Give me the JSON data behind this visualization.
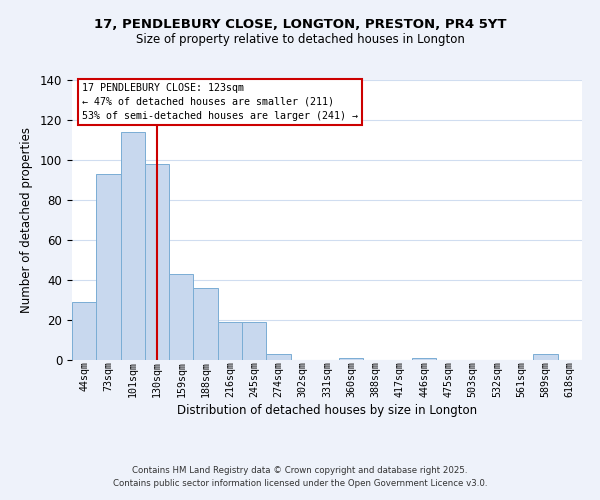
{
  "title": "17, PENDLEBURY CLOSE, LONGTON, PRESTON, PR4 5YT",
  "subtitle": "Size of property relative to detached houses in Longton",
  "xlabel": "Distribution of detached houses by size in Longton",
  "ylabel": "Number of detached properties",
  "bar_labels": [
    "44sqm",
    "73sqm",
    "101sqm",
    "130sqm",
    "159sqm",
    "188sqm",
    "216sqm",
    "245sqm",
    "274sqm",
    "302sqm",
    "331sqm",
    "360sqm",
    "388sqm",
    "417sqm",
    "446sqm",
    "475sqm",
    "503sqm",
    "532sqm",
    "561sqm",
    "589sqm",
    "618sqm"
  ],
  "bar_values": [
    29,
    93,
    114,
    98,
    43,
    36,
    19,
    19,
    3,
    0,
    0,
    1,
    0,
    0,
    1,
    0,
    0,
    0,
    0,
    3,
    0
  ],
  "bar_color": "#c8d8ee",
  "bar_edge_color": "#7aadd4",
  "vline_x": 3,
  "vline_color": "#cc0000",
  "ylim": [
    0,
    140
  ],
  "yticks": [
    0,
    20,
    40,
    60,
    80,
    100,
    120,
    140
  ],
  "annotation_line1": "17 PENDLEBURY CLOSE: 123sqm",
  "annotation_line2": "← 47% of detached houses are smaller (211)",
  "annotation_line3": "53% of semi-detached houses are larger (241) →",
  "footer_line1": "Contains HM Land Registry data © Crown copyright and database right 2025.",
  "footer_line2": "Contains public sector information licensed under the Open Government Licence v3.0.",
  "background_color": "#eef2fa",
  "plot_bg_color": "#ffffff",
  "grid_color": "#d0ddf0"
}
